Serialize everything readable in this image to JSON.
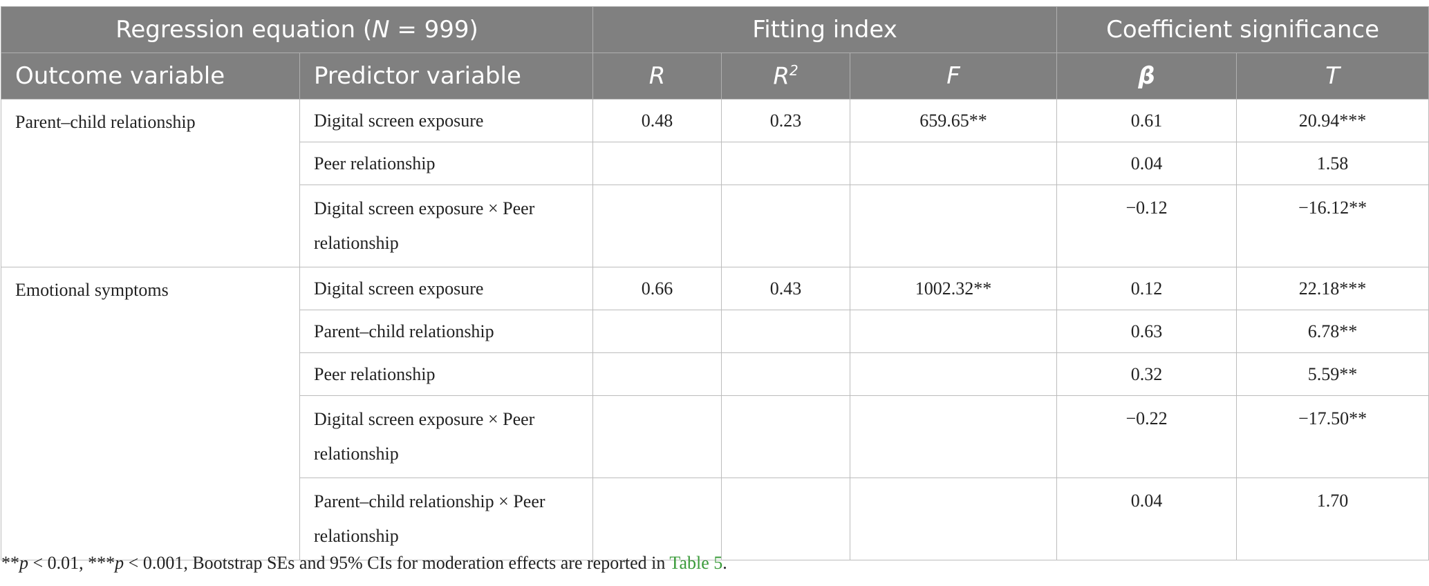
{
  "header": {
    "group1_prefix": "Regression equation (",
    "group1_n": "N",
    "group1_suffix": " = 999)",
    "group2": "Fitting index",
    "group3": "Coefficient significance",
    "col_outcome": "Outcome variable",
    "col_predictor": "Predictor variable",
    "col_r": "R",
    "col_r2_base": "R",
    "col_r2_sup": "2",
    "col_f": "F",
    "col_beta": "β",
    "col_t": "T"
  },
  "groups": [
    {
      "outcome": "Parent–child relationship",
      "rows": [
        {
          "predictor": "Digital screen exposure",
          "r": "0.48",
          "r2": "0.23",
          "f": "659.65**",
          "beta": "0.61",
          "t": "20.94***"
        },
        {
          "predictor": "Peer relationship",
          "r": "",
          "r2": "",
          "f": "",
          "beta": "0.04",
          "t": "1.58"
        },
        {
          "predictor": "Digital screen exposure × Peer relationship",
          "r": "",
          "r2": "",
          "f": "",
          "beta": "−0.12",
          "t": "−16.12**"
        }
      ]
    },
    {
      "outcome": "Emotional symptoms",
      "rows": [
        {
          "predictor": "Digital screen exposure",
          "r": "0.66",
          "r2": "0.43",
          "f": "1002.32**",
          "beta": "0.12",
          "t": "22.18***"
        },
        {
          "predictor": "Parent–child relationship",
          "r": "",
          "r2": "",
          "f": "",
          "beta": "0.63",
          "t": "6.78**"
        },
        {
          "predictor": "Peer relationship",
          "r": "",
          "r2": "",
          "f": "",
          "beta": "0.32",
          "t": "5.59**"
        },
        {
          "predictor": "Digital screen exposure × Peer relationship",
          "r": "",
          "r2": "",
          "f": "",
          "beta": "−0.22",
          "t": "−17.50**"
        },
        {
          "predictor": "Parent–child relationship × Peer relationship",
          "r": "",
          "r2": "",
          "f": "",
          "beta": "0.04",
          "t": "1.70"
        }
      ]
    }
  ],
  "note": {
    "p1_stars": "**",
    "p1_sym": "p",
    "p1_rest": " < 0.01, ***",
    "p2_sym": "p",
    "p2_rest": " < 0.001, Bootstrap SEs and 95% CIs for moderation effects are reported in ",
    "link": "Table 5",
    "end": "."
  },
  "colors": {
    "header_bg": "#808080",
    "link": "#3a9b3a"
  }
}
